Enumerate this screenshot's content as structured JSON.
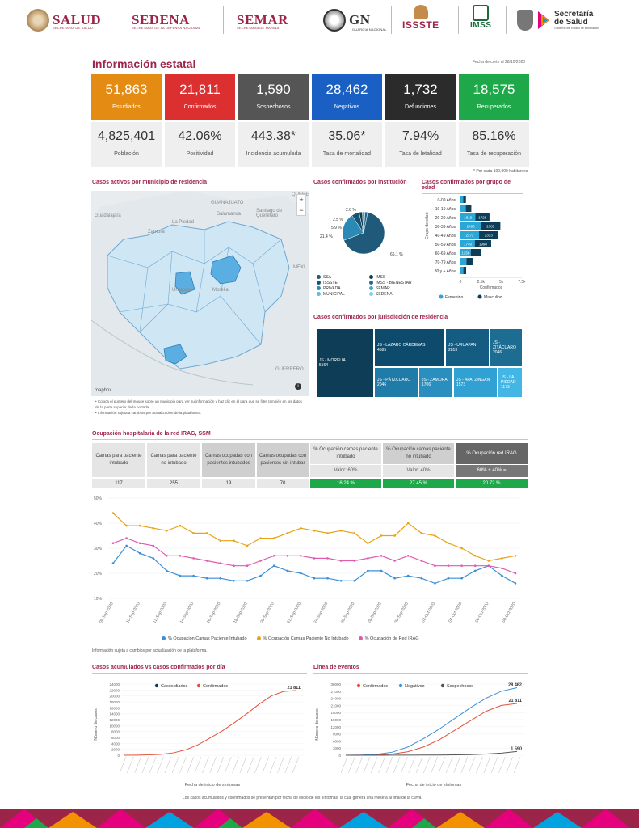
{
  "header": {
    "logos": [
      {
        "name": "SALUD",
        "sub": "SECRETARÍA DE SALUD"
      },
      {
        "name": "SEDENA",
        "sub": "SECRETARÍA DE LA DEFENSA NACIONAL"
      },
      {
        "name": "SEMAR",
        "sub": "SECRETARÍA DE MARINA"
      },
      {
        "name": "GN",
        "sub": "GUARDIA NACIONAL"
      },
      {
        "name": "ISSSTE"
      },
      {
        "name": "IMSS"
      },
      {
        "name": "Secretaría de Salud",
        "sub": "Gobierno del Estado de Michoacán"
      }
    ]
  },
  "title": "Información estatal",
  "fecha_corte": "Fecha de corte al 28/10/2020",
  "kpis": [
    {
      "value": "51,863",
      "label": "Estudiados",
      "color": "#e38b12"
    },
    {
      "value": "21,811",
      "label": "Confirmados",
      "color": "#dc3030"
    },
    {
      "value": "1,590",
      "label": "Sospechosos",
      "color": "#555555"
    },
    {
      "value": "28,462",
      "label": "Negativos",
      "color": "#1a5fc4"
    },
    {
      "value": "1,732",
      "label": "Defunciones",
      "color": "#2b2b2b"
    },
    {
      "value": "18,575",
      "label": "Recuperados",
      "color": "#1fa84a"
    }
  ],
  "stats": [
    {
      "value": "4,825,401",
      "label": "Población"
    },
    {
      "value": "42.06%",
      "label": "Positividad"
    },
    {
      "value": "443.38*",
      "label": "Incidencia acumulada"
    },
    {
      "value": "35.06*",
      "label": "Tasa de mortalidad"
    },
    {
      "value": "7.94%",
      "label": "Tasa de letalidad"
    },
    {
      "value": "85.16%",
      "label": "Tasa de recuperación"
    }
  ],
  "stats_note": "* Por cada 100,000 habitantes",
  "sections": {
    "map": "Casos activos por municipio de residencia",
    "institucion": "Casos confirmados por institución",
    "edad": "Casos confirmados por grupo de edad",
    "jurisdiccion": "Casos confirmados por jurisdicción de residencia",
    "hospital": "Ocupación hospitalaria de la red IRAG, SSM",
    "acumulados": "Casos acumulados vs casos confirmados por día",
    "eventos": "Línea de eventos"
  },
  "map": {
    "labels": [
      "Guadalajara",
      "GUANAJUATO",
      "Santiago de Querétaro",
      "Salamanca",
      "La Piedad",
      "Zamora",
      "Uruapan",
      "Morelia",
      "GUERRERO",
      "QUERE",
      "MÉXI"
    ],
    "zoom_in": "+",
    "zoom_out": "−",
    "attribution": "mapbox",
    "bullets": [
      "Coloca el puntero del mouse sobre un municipio para ver su información y haz clic en él para que se filtre también en los datos de la parte superior de la portada.",
      "Información sujeta a cambios por actualización de la plataforma."
    ]
  },
  "institucion_chart": {
    "slices": [
      {
        "label": "66.1 %",
        "value": 66.1,
        "name": "SSA",
        "color": "#1f5a7a"
      },
      {
        "label": "21.4 %",
        "value": 21.4,
        "name": "IMSS",
        "color": "#2a89b5"
      },
      {
        "label": "5.9 %",
        "value": 5.9,
        "name": "ISSSTE",
        "color": "#155373"
      },
      {
        "label": "2.5 %",
        "value": 2.5,
        "name": "IMSS - BIENESTAR",
        "color": "#0e3d57"
      },
      {
        "label": "2.0 %",
        "value": 2.0,
        "name": "PRIVADA",
        "color": "#3fa8cf"
      },
      {
        "value": 2.1,
        "name": "SEMAR",
        "color": "#1d6c91"
      }
    ],
    "legend": [
      "SSA",
      "IMSS",
      "ISSSTE",
      "IMSS - BIENESTAR",
      "PRIVADA",
      "SEMAR",
      "MUNICIPAL",
      "SEDENA"
    ]
  },
  "edad_chart": {
    "groups": [
      "0-09 Años",
      "10-19 Años",
      "20-29 Años",
      "30-39 Años",
      "40-49 Años",
      "50-59 Años",
      "60-69 Años",
      "70-79 Años",
      "80 y + Años"
    ],
    "femenino": [
      329,
      652,
      1819,
      2490,
      2272,
      1749,
      1258,
      727,
      353
    ],
    "masculino": [
      339,
      673,
      1726,
      2385,
      2313,
      1998,
      1300,
      750,
      342
    ],
    "bar_labels": [
      [
        "",
        ""
      ],
      [
        "",
        ""
      ],
      [
        "1819",
        "1726"
      ],
      [
        "2490",
        "2385"
      ],
      [
        "2272",
        "2313"
      ],
      [
        "1749",
        "1998"
      ],
      [
        "1258",
        ""
      ],
      [
        "",
        ""
      ],
      [
        "",
        ""
      ]
    ],
    "ylabel": "Grupo de edad",
    "xlabel": "Confirmados",
    "xticks": [
      "0",
      "2.5k",
      "5k",
      "7.5k"
    ],
    "legend": [
      "Femenino",
      "Masculino"
    ]
  },
  "jurisdiccion": [
    {
      "name": "JS - MORELIA",
      "value": "5564"
    },
    {
      "name": "JS - LÁZARO CÁRDENAS",
      "value": "4585"
    },
    {
      "name": "JS - URUAPAN",
      "value": "2813"
    },
    {
      "name": "JS - ZITÁCUARO",
      "value": "2046"
    },
    {
      "name": "JS - PÁTZCUARO",
      "value": "2046"
    },
    {
      "name": "JS - ZAMORA",
      "value": "1706"
    },
    {
      "name": "JS - APATZINGÁN",
      "value": "1573"
    },
    {
      "name": "JS - LA PIEDAD",
      "value": "1173"
    }
  ],
  "hospital": {
    "headers": [
      "Camas para paciente intubado",
      "Camas para paciente no intubado",
      "Camas ocupadas con pacientes intubados",
      "Camas ocupadas con pacientes sin intubar",
      "% Ocupación camas paciente intubado",
      "% Ocupación camas paciente no intubado",
      "% Ocupación red IRAG"
    ],
    "sub": [
      "Valor: 60%",
      "Valor: 40%",
      "60% + 40% ="
    ],
    "values": [
      "117",
      "255",
      "19",
      "70",
      "16.24 %",
      "27.45 %",
      "20.72 %"
    ]
  },
  "ocupacion_chart": {
    "yticks": [
      "50%",
      "40%",
      "30%",
      "20%",
      "10%"
    ],
    "xticks": [
      "08-Sep-2020",
      "10-Sep-2020",
      "12-Sep-2020",
      "14-Sep-2020",
      "16-Sep-2020",
      "18-Sep-2020",
      "20-Sep-2020",
      "22-Sep-2020",
      "24-Sep-2020",
      "26-Sep-2020",
      "28-Sep-2020",
      "30-Sep-2020",
      "02-Oct-2020",
      "04-Oct-2020",
      "06-Oct-2020",
      "08-Oct-2020"
    ],
    "legend": [
      "% Ocupación Camas Paciente Intubado",
      "% Ocupación Camas Paciente No Intubado",
      "% Ocupación de Red IRAG"
    ],
    "note": "Información sujeta a cambios por actualización de la plataforma."
  },
  "acumulados_chart": {
    "yticks": [
      "24000",
      "22000",
      "20000",
      "18000",
      "16000",
      "14000",
      "12000",
      "10000",
      "8000",
      "6000",
      "4000",
      "2000",
      "0"
    ],
    "ylabel": "Número de casos",
    "xlabel": "Fecha de inicio de síntomas",
    "legend": [
      "Casos diarios",
      "Confirmados"
    ],
    "end_label": "21 811"
  },
  "eventos_chart": {
    "yticks": [
      "30000",
      "27000",
      "24000",
      "21000",
      "18000",
      "15000",
      "12000",
      "9000",
      "6000",
      "3000",
      "0"
    ],
    "ylabel": "Número de casos",
    "xlabel": "Fecha de inicio de síntomas",
    "legend": [
      "Confirmados",
      "Negativos",
      "Sospechosos"
    ],
    "end_labels": [
      "28 462",
      "21 811",
      "1 590"
    ]
  },
  "footer_note": "Los casos acumulados y confirmados se presentan por fecha de inicio de los síntomas, la cual genera una meseta al final de la curva.",
  "chart_data": [
    {
      "type": "line",
      "x": [
        "08-Sep",
        "09-Sep",
        "10-Sep",
        "11-Sep",
        "12-Sep",
        "13-Sep",
        "14-Sep",
        "15-Sep",
        "16-Sep",
        "17-Sep",
        "18-Sep",
        "19-Sep",
        "20-Sep",
        "21-Sep",
        "22-Sep",
        "23-Sep",
        "24-Sep",
        "25-Sep",
        "26-Sep",
        "27-Sep",
        "28-Sep",
        "29-Sep",
        "30-Sep",
        "01-Oct",
        "02-Oct",
        "03-Oct",
        "04-Oct",
        "05-Oct",
        "06-Oct",
        "07-Oct",
        "08-Oct"
      ],
      "series": [
        {
          "name": "% Ocupación Camas Paciente Intubado",
          "values": [
            24,
            31,
            28,
            26,
            21,
            19,
            19,
            18,
            18,
            17,
            17,
            19,
            23,
            21,
            20,
            18,
            18,
            17,
            17,
            21,
            21,
            18,
            19,
            18,
            16,
            18,
            18,
            21,
            23,
            19,
            16
          ],
          "color": "#3b8fd6"
        },
        {
          "name": "% Ocupación Camas Paciente No Intubado",
          "values": [
            44,
            39,
            39,
            38,
            37,
            39,
            36,
            36,
            33,
            33,
            31,
            34,
            34,
            36,
            38,
            37,
            36,
            37,
            36,
            32,
            35,
            35,
            40,
            36,
            35,
            32,
            30,
            27,
            25,
            26,
            27
          ],
          "color": "#e8a317"
        },
        {
          "name": "% Ocupación de Red IRAG",
          "values": [
            32,
            34,
            32,
            31,
            27,
            27,
            26,
            25,
            24,
            23,
            23,
            25,
            27,
            27,
            27,
            26,
            26,
            25,
            25,
            26,
            27,
            25,
            27,
            25,
            23,
            23,
            23,
            23,
            23,
            22,
            20
          ],
          "color": "#e05ab0"
        }
      ],
      "ylim": [
        10,
        50
      ]
    },
    {
      "type": "line",
      "series": [
        {
          "name": "Confirmados",
          "values": [
            0,
            50,
            120,
            300,
            800,
            1800,
            3500,
            5800,
            8200,
            11000,
            14000,
            17200,
            20000,
            21500,
            21811
          ],
          "color": "#e1523a"
        }
      ],
      "ylim": [
        0,
        24000
      ]
    },
    {
      "type": "line",
      "series": [
        {
          "name": "Confirmados",
          "values": [
            0,
            30,
            150,
            500,
            1500,
            3500,
            6500,
            10500,
            14500,
            18500,
            21000,
            21811
          ],
          "color": "#e1523a"
        },
        {
          "name": "Negativos",
          "values": [
            0,
            80,
            400,
            1300,
            3500,
            7000,
            11000,
            15500,
            20000,
            24000,
            27000,
            28462
          ],
          "color": "#3b8fd6"
        },
        {
          "name": "Sospechosos",
          "values": [
            0,
            10,
            20,
            40,
            60,
            80,
            100,
            150,
            250,
            500,
            900,
            1590
          ],
          "color": "#555555"
        }
      ],
      "ylim": [
        0,
        30000
      ]
    }
  ]
}
